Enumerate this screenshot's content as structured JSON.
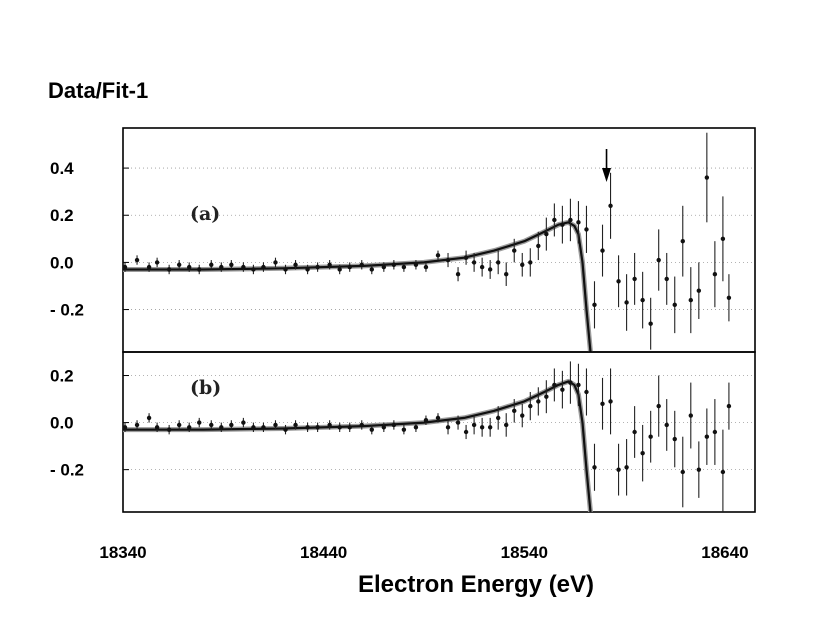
{
  "chart_data": {
    "type": "scatter",
    "y_axis_title": "Data/Fit-1",
    "xlabel": "Electron Energy (eV)",
    "x_ticks": [
      18340,
      18440,
      18540,
      18640
    ],
    "xlim": [
      18340,
      18655
    ],
    "arrow_x": 18581,
    "panels": [
      {
        "label": "(a)",
        "ylim": [
          -0.38,
          0.57
        ],
        "y_ticks": [
          {
            "value": 0.4,
            "label": "0.4"
          },
          {
            "value": 0.2,
            "label": "0.2"
          },
          {
            "value": 0.0,
            "label": "0.0"
          },
          {
            "value": -0.2,
            "label": "- 0.2"
          }
        ],
        "points": [
          [
            18341,
            -0.02,
            0.02
          ],
          [
            18347,
            0.01,
            0.02
          ],
          [
            18353,
            -0.02,
            0.02
          ],
          [
            18357,
            0.0,
            0.02
          ],
          [
            18363,
            -0.03,
            0.02
          ],
          [
            18368,
            -0.01,
            0.02
          ],
          [
            18373,
            -0.02,
            0.02
          ],
          [
            18378,
            -0.03,
            0.02
          ],
          [
            18384,
            -0.01,
            0.02
          ],
          [
            18389,
            -0.02,
            0.02
          ],
          [
            18394,
            -0.01,
            0.02
          ],
          [
            18400,
            -0.02,
            0.02
          ],
          [
            18405,
            -0.03,
            0.02
          ],
          [
            18410,
            -0.02,
            0.02
          ],
          [
            18416,
            0.0,
            0.02
          ],
          [
            18421,
            -0.03,
            0.02
          ],
          [
            18426,
            -0.01,
            0.02
          ],
          [
            18432,
            -0.03,
            0.02
          ],
          [
            18437,
            -0.02,
            0.02
          ],
          [
            18443,
            -0.01,
            0.02
          ],
          [
            18448,
            -0.03,
            0.02
          ],
          [
            18453,
            -0.02,
            0.02
          ],
          [
            18459,
            -0.01,
            0.02
          ],
          [
            18464,
            -0.03,
            0.02
          ],
          [
            18470,
            -0.02,
            0.02
          ],
          [
            18475,
            -0.01,
            0.02
          ],
          [
            18480,
            -0.02,
            0.02
          ],
          [
            18486,
            -0.01,
            0.02
          ],
          [
            18491,
            -0.02,
            0.02
          ],
          [
            18497,
            0.03,
            0.02
          ],
          [
            18502,
            0.01,
            0.03
          ],
          [
            18507,
            -0.05,
            0.03
          ],
          [
            18511,
            0.02,
            0.03
          ],
          [
            18515,
            0.0,
            0.04
          ],
          [
            18519,
            -0.02,
            0.04
          ],
          [
            18523,
            -0.03,
            0.04
          ],
          [
            18527,
            0.0,
            0.05
          ],
          [
            18531,
            -0.05,
            0.05
          ],
          [
            18535,
            0.05,
            0.05
          ],
          [
            18539,
            -0.01,
            0.05
          ],
          [
            18543,
            0.0,
            0.06
          ],
          [
            18547,
            0.07,
            0.06
          ],
          [
            18551,
            0.12,
            0.07
          ],
          [
            18555,
            0.18,
            0.07
          ],
          [
            18559,
            0.16,
            0.08
          ],
          [
            18563,
            0.18,
            0.09
          ],
          [
            18567,
            0.17,
            0.09
          ],
          [
            18571,
            0.14,
            0.1
          ],
          [
            18575,
            -0.18,
            0.1
          ],
          [
            18579,
            0.05,
            0.11
          ],
          [
            18583,
            0.24,
            0.14
          ],
          [
            18587,
            -0.08,
            0.11
          ],
          [
            18591,
            -0.17,
            0.12
          ],
          [
            18595,
            -0.07,
            0.11
          ],
          [
            18599,
            -0.16,
            0.12
          ],
          [
            18603,
            -0.26,
            0.11
          ],
          [
            18607,
            0.01,
            0.13
          ],
          [
            18611,
            -0.07,
            0.11
          ],
          [
            18615,
            -0.18,
            0.12
          ],
          [
            18619,
            0.09,
            0.15
          ],
          [
            18623,
            -0.16,
            0.14
          ],
          [
            18627,
            -0.12,
            0.12
          ],
          [
            18631,
            0.36,
            0.19
          ],
          [
            18635,
            -0.05,
            0.14
          ],
          [
            18639,
            0.1,
            0.18
          ],
          [
            18642,
            -0.15,
            0.1
          ]
        ],
        "fit_curve": [
          [
            18340,
            -0.03
          ],
          [
            18380,
            -0.03
          ],
          [
            18420,
            -0.025
          ],
          [
            18460,
            -0.015
          ],
          [
            18490,
            0.0
          ],
          [
            18510,
            0.02
          ],
          [
            18525,
            0.05
          ],
          [
            18540,
            0.09
          ],
          [
            18550,
            0.13
          ],
          [
            18557,
            0.16
          ],
          [
            18562,
            0.17
          ],
          [
            18565,
            0.155
          ],
          [
            18567,
            0.12
          ],
          [
            18569,
            0.0
          ],
          [
            18571,
            -0.2
          ],
          [
            18573,
            -0.38
          ]
        ]
      },
      {
        "label": "(b)",
        "ylim": [
          -0.38,
          0.3
        ],
        "y_ticks": [
          {
            "value": 0.2,
            "label": "0.2"
          },
          {
            "value": 0.0,
            "label": "0.0"
          },
          {
            "value": -0.2,
            "label": "- 0.2"
          }
        ],
        "points": [
          [
            18341,
            -0.02,
            0.02
          ],
          [
            18347,
            -0.01,
            0.02
          ],
          [
            18353,
            0.02,
            0.02
          ],
          [
            18357,
            -0.02,
            0.02
          ],
          [
            18363,
            -0.03,
            0.02
          ],
          [
            18368,
            -0.01,
            0.02
          ],
          [
            18373,
            -0.02,
            0.02
          ],
          [
            18378,
            0.0,
            0.02
          ],
          [
            18384,
            -0.01,
            0.02
          ],
          [
            18389,
            -0.02,
            0.02
          ],
          [
            18394,
            -0.01,
            0.02
          ],
          [
            18400,
            0.0,
            0.02
          ],
          [
            18405,
            -0.02,
            0.02
          ],
          [
            18410,
            -0.02,
            0.02
          ],
          [
            18416,
            -0.01,
            0.02
          ],
          [
            18421,
            -0.03,
            0.02
          ],
          [
            18426,
            -0.01,
            0.02
          ],
          [
            18432,
            -0.02,
            0.02
          ],
          [
            18437,
            -0.02,
            0.02
          ],
          [
            18443,
            -0.01,
            0.02
          ],
          [
            18448,
            -0.02,
            0.02
          ],
          [
            18453,
            -0.02,
            0.02
          ],
          [
            18459,
            -0.01,
            0.02
          ],
          [
            18464,
            -0.03,
            0.02
          ],
          [
            18470,
            -0.02,
            0.02
          ],
          [
            18475,
            -0.01,
            0.02
          ],
          [
            18480,
            -0.03,
            0.02
          ],
          [
            18486,
            -0.02,
            0.02
          ],
          [
            18491,
            0.01,
            0.02
          ],
          [
            18497,
            0.02,
            0.02
          ],
          [
            18502,
            -0.02,
            0.03
          ],
          [
            18507,
            0.0,
            0.03
          ],
          [
            18511,
            -0.04,
            0.03
          ],
          [
            18515,
            -0.01,
            0.04
          ],
          [
            18519,
            -0.02,
            0.04
          ],
          [
            18523,
            -0.02,
            0.04
          ],
          [
            18527,
            0.02,
            0.05
          ],
          [
            18531,
            -0.01,
            0.05
          ],
          [
            18535,
            0.05,
            0.05
          ],
          [
            18539,
            0.03,
            0.05
          ],
          [
            18543,
            0.07,
            0.06
          ],
          [
            18547,
            0.09,
            0.06
          ],
          [
            18551,
            0.11,
            0.07
          ],
          [
            18555,
            0.16,
            0.07
          ],
          [
            18559,
            0.14,
            0.08
          ],
          [
            18563,
            0.17,
            0.09
          ],
          [
            18567,
            0.16,
            0.09
          ],
          [
            18571,
            0.13,
            0.1
          ],
          [
            18575,
            -0.19,
            0.1
          ],
          [
            18579,
            0.08,
            0.11
          ],
          [
            18583,
            0.09,
            0.14
          ],
          [
            18587,
            -0.2,
            0.11
          ],
          [
            18591,
            -0.19,
            0.12
          ],
          [
            18595,
            -0.04,
            0.11
          ],
          [
            18599,
            -0.13,
            0.12
          ],
          [
            18603,
            -0.06,
            0.11
          ],
          [
            18607,
            0.07,
            0.13
          ],
          [
            18611,
            -0.01,
            0.11
          ],
          [
            18615,
            -0.07,
            0.12
          ],
          [
            18619,
            -0.21,
            0.15
          ],
          [
            18623,
            0.03,
            0.14
          ],
          [
            18627,
            -0.2,
            0.12
          ],
          [
            18631,
            -0.06,
            0.12
          ],
          [
            18635,
            -0.04,
            0.14
          ],
          [
            18639,
            -0.21,
            0.18
          ],
          [
            18642,
            0.07,
            0.1
          ]
        ],
        "fit_curve": [
          [
            18340,
            -0.03
          ],
          [
            18380,
            -0.03
          ],
          [
            18420,
            -0.025
          ],
          [
            18460,
            -0.015
          ],
          [
            18490,
            0.0
          ],
          [
            18510,
            0.02
          ],
          [
            18525,
            0.05
          ],
          [
            18540,
            0.09
          ],
          [
            18550,
            0.13
          ],
          [
            18557,
            0.16
          ],
          [
            18562,
            0.175
          ],
          [
            18565,
            0.16
          ],
          [
            18567,
            0.12
          ],
          [
            18569,
            0.0
          ],
          [
            18571,
            -0.2
          ],
          [
            18573,
            -0.38
          ]
        ]
      }
    ]
  }
}
